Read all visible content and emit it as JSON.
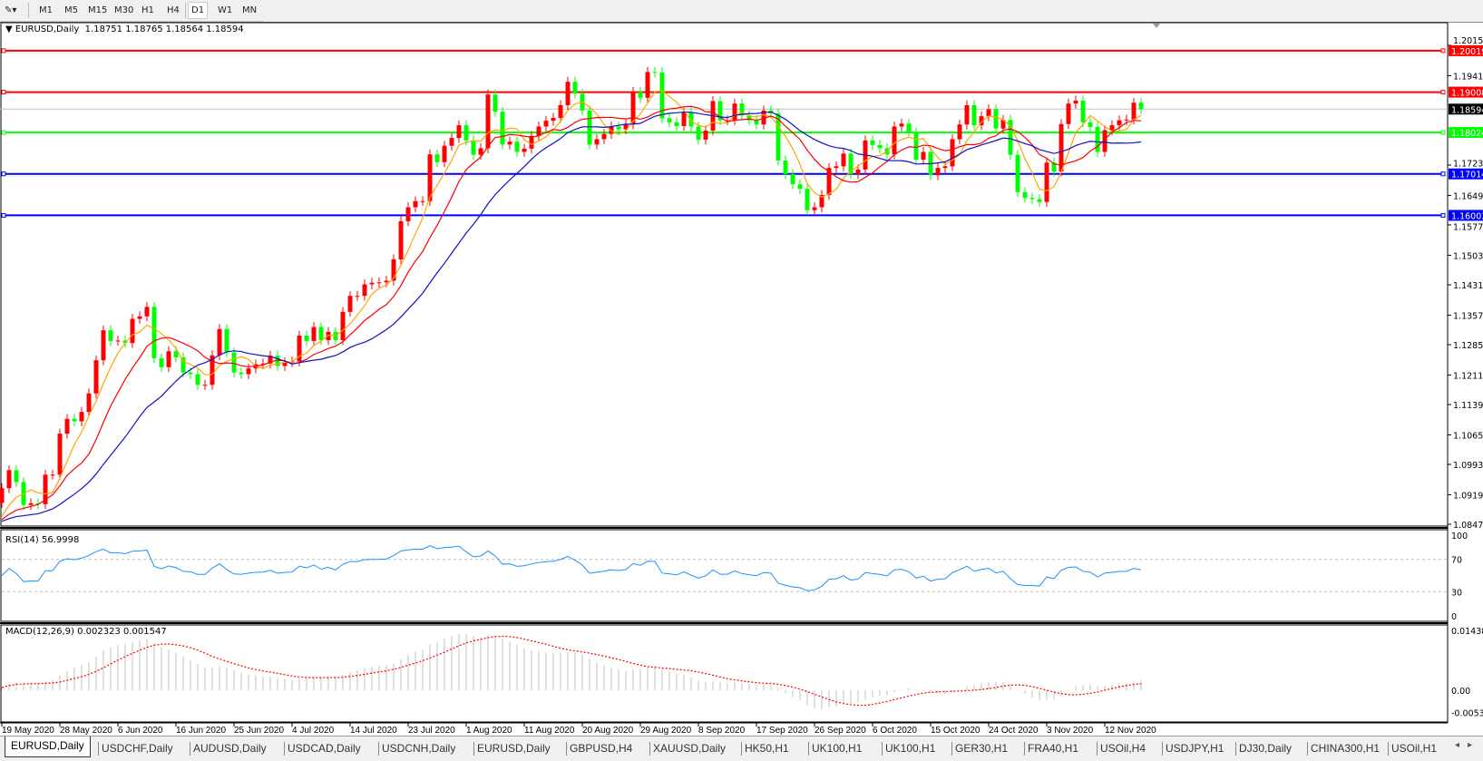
{
  "toolbar": {
    "tool_icon": "line-tool-icon",
    "timeframes": [
      "M1",
      "M5",
      "M15",
      "M30",
      "H1",
      "H4",
      "D1",
      "W1",
      "MN"
    ],
    "active_timeframe": "D1"
  },
  "chart": {
    "symbol_label": "EURUSD,Daily",
    "ohlc": "1.18751 1.18765 1.18564 1.18594",
    "up_color": "#ff0000",
    "down_color": "#00ff00",
    "current_price": "1.18594",
    "levels": [
      {
        "price": 1.20019,
        "label": "1.20019",
        "color": "#ff0000"
      },
      {
        "price": 1.19008,
        "label": "1.19008",
        "color": "#ff0000"
      },
      {
        "price": 1.18024,
        "label": "1.18024",
        "color": "#00ff00"
      },
      {
        "price": 1.17014,
        "label": "1.17014",
        "color": "#0000ff"
      },
      {
        "price": 1.16003,
        "label": "1.16003",
        "color": "#0000ff"
      }
    ],
    "price_axis": [
      "1.20150",
      "1.19410",
      "1.17230",
      "1.16490",
      "1.15770",
      "1.15030",
      "1.14310",
      "1.13570",
      "1.12850",
      "1.12110",
      "1.11390",
      "1.10650",
      "1.09930",
      "1.09190",
      "1.08470"
    ],
    "ma_colors": [
      "#ffa500",
      "#ff0000",
      "#1010c8"
    ],
    "closes": [
      1.0935,
      1.0979,
      1.095,
      1.0894,
      1.0898,
      1.0896,
      1.0968,
      1.0968,
      1.1068,
      1.1104,
      1.1098,
      1.1121,
      1.1166,
      1.1247,
      1.132,
      1.1294,
      1.1295,
      1.1289,
      1.1348,
      1.1354,
      1.1377,
      1.1252,
      1.123,
      1.1269,
      1.1254,
      1.1217,
      1.1213,
      1.1187,
      1.1187,
      1.1259,
      1.1323,
      1.1266,
      1.1217,
      1.1213,
      1.1227,
      1.1237,
      1.1239,
      1.1258,
      1.1233,
      1.1242,
      1.1244,
      1.1307,
      1.1294,
      1.1328,
      1.1296,
      1.1316,
      1.1296,
      1.1365,
      1.1404,
      1.1404,
      1.1432,
      1.1436,
      1.1437,
      1.1441,
      1.1493,
      1.1586,
      1.162,
      1.1635,
      1.1635,
      1.1749,
      1.173,
      1.177,
      1.1789,
      1.182,
      1.1783,
      1.1748,
      1.1764,
      1.1895,
      1.1853,
      1.1773,
      1.178,
      1.1755,
      1.1763,
      1.1794,
      1.1817,
      1.1831,
      1.1838,
      1.1869,
      1.1926,
      1.1897,
      1.1856,
      1.1773,
      1.1786,
      1.1799,
      1.1817,
      1.181,
      1.1822,
      1.1901,
      1.1887,
      1.195,
      1.1949,
      1.1837,
      1.1827,
      1.1818,
      1.1851,
      1.1817,
      1.1785,
      1.1807,
      1.1879,
      1.1832,
      1.1832,
      1.1873,
      1.1844,
      1.1832,
      1.1822,
      1.1856,
      1.1849,
      1.1734,
      1.1701,
      1.1676,
      1.1665,
      1.1613,
      1.162,
      1.165,
      1.1716,
      1.172,
      1.1751,
      1.1701,
      1.1712,
      1.1783,
      1.1772,
      1.1764,
      1.1749,
      1.1817,
      1.1824,
      1.1802,
      1.1736,
      1.1755,
      1.1698,
      1.1716,
      1.172,
      1.1786,
      1.1822,
      1.1869,
      1.182,
      1.1842,
      1.1859,
      1.1812,
      1.1833,
      1.1748,
      1.1657,
      1.1643,
      1.164,
      1.1633,
      1.1729,
      1.1707,
      1.1823,
      1.1873,
      1.188,
      1.1827,
      1.1816,
      1.1755,
      1.1808,
      1.182,
      1.1832,
      1.1834,
      1.1875,
      1.18594
    ]
  },
  "rsi": {
    "label": "RSI(14) 56.9998",
    "axis": [
      "100",
      "70",
      "30",
      "0"
    ],
    "color": "#1e90ff"
  },
  "macd": {
    "label": "MACD(12,26,9) 0.002323 0.001547",
    "axis": [
      "0.014384",
      "0.00",
      "-0.00539"
    ],
    "signal_color": "#ff0000",
    "hist_color": "#c0c0c0"
  },
  "dates": [
    "19 May 2020",
    "28 May 2020",
    "6 Jun 2020",
    "16 Jun 2020",
    "25 Jun 2020",
    "4 Jul 2020",
    "14 Jul 2020",
    "23 Jul 2020",
    "1 Aug 2020",
    "11 Aug 2020",
    "20 Aug 2020",
    "29 Aug 2020",
    "8 Sep 2020",
    "17 Sep 2020",
    "26 Sep 2020",
    "6 Oct 2020",
    "15 Oct 2020",
    "24 Oct 2020",
    "3 Nov 2020",
    "12 Nov 2020"
  ],
  "tabs": [
    "EURUSD,Daily",
    "USDCHF,Daily",
    "AUDUSD,Daily",
    "USDCAD,Daily",
    "USDCNH,Daily",
    "EURUSD,Daily",
    "GBPUSD,H4",
    "XAUUSD,Daily",
    "HK50,H1",
    "UK100,H1",
    "UK100,H1",
    "GER30,H1",
    "FRA40,H1",
    "USOil,H4",
    "USDJPY,H1",
    "DJ30,Daily",
    "CHINA300,H1",
    "USOil,H1"
  ],
  "tab_scroll": {
    "left": "◂",
    "right": "▸"
  }
}
